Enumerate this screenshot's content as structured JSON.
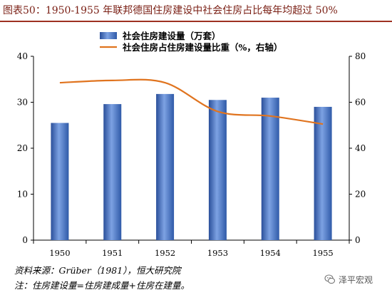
{
  "title": "图表50：1950-1955 年联邦德国住房建设中社会住房占比每年均超过 50%",
  "chart_data": {
    "type": "bar",
    "categories": [
      "1950",
      "1951",
      "1952",
      "1953",
      "1954",
      "1955"
    ],
    "series": [
      {
        "name": "社会住房建设量（万套）",
        "type": "bar",
        "axis": "left",
        "values": [
          25.5,
          29.6,
          31.8,
          30.5,
          31.0,
          29.0
        ],
        "color": "#3f73c8"
      },
      {
        "name": "社会住房占住房建设量比重（%，右轴）",
        "type": "line",
        "axis": "right",
        "values": [
          68.5,
          69.5,
          68.5,
          56.0,
          54.0,
          50.5
        ],
        "color": "#e0741f"
      }
    ],
    "y_left": {
      "min": 0,
      "max": 40,
      "ticks": [
        "0",
        "10",
        "20",
        "30",
        "40"
      ]
    },
    "y_right": {
      "min": 0,
      "max": 80,
      "ticks": [
        "0",
        "20",
        "40",
        "60",
        "80"
      ]
    },
    "legend_position": "top-left",
    "grid": false
  },
  "source": "资料来源：Grüber（1981），恒大研究院",
  "note": "注：住房建设量=住房建成量+住房在建量。",
  "watermark": {
    "icon": "wechat-icon",
    "text": "泽平宏观"
  }
}
